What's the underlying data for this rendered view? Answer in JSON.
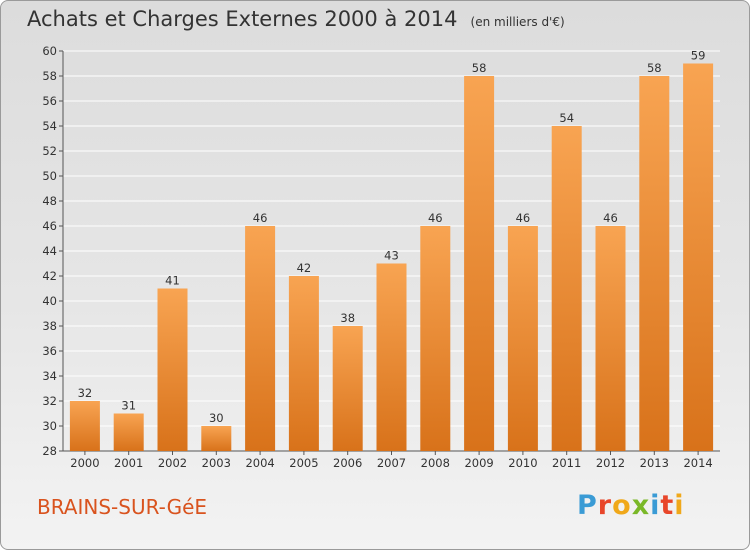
{
  "title": "Achats et Charges Externes 2000 à 2014",
  "subtitle": "(en milliers d'€)",
  "town": "BRAINS-SUR-GéE",
  "logo": {
    "letters": [
      "P",
      "r",
      "o",
      "x",
      "i",
      "t",
      "i"
    ],
    "colors": [
      "#3a9bd5",
      "#e8462a",
      "#f0a81a",
      "#7ab828",
      "#3a9bd5",
      "#e8462a",
      "#f0a81a"
    ]
  },
  "colors": {
    "bar_top": "#f8a452",
    "bar_bottom": "#d8721a",
    "town": "#d9531e",
    "grid": "#ffffff"
  },
  "chart_data": {
    "type": "bar",
    "categories": [
      "2000",
      "2001",
      "2002",
      "2003",
      "2004",
      "2005",
      "2006",
      "2007",
      "2008",
      "2009",
      "2010",
      "2011",
      "2012",
      "2013",
      "2014"
    ],
    "values": [
      32,
      31,
      41,
      30,
      46,
      42,
      38,
      43,
      46,
      58,
      46,
      54,
      46,
      58,
      59
    ],
    "ylim": [
      28,
      60
    ],
    "yticks": [
      28,
      30,
      32,
      34,
      36,
      38,
      40,
      42,
      44,
      46,
      48,
      50,
      52,
      54,
      56,
      58,
      60
    ],
    "grid": true,
    "data_labels": true
  }
}
